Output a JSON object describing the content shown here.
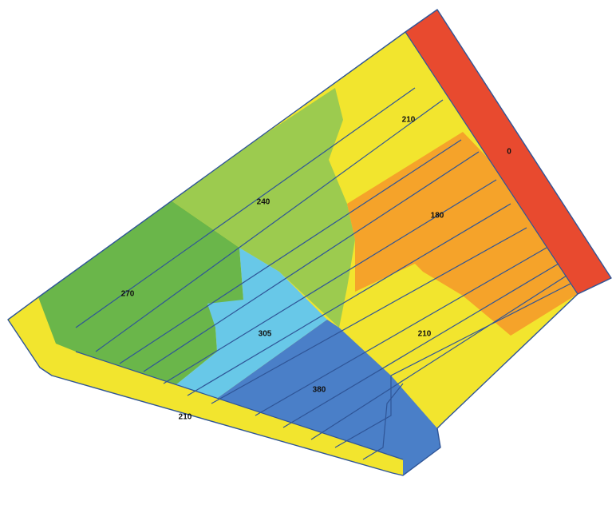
{
  "map": {
    "zones": [
      {
        "id": "zone-0",
        "label": "0",
        "color": "#e84a2f"
      },
      {
        "id": "zone-180",
        "label": "180",
        "color": "#f5a32a"
      },
      {
        "id": "zone-210-ne",
        "label": "210",
        "color": "#f2e52e"
      },
      {
        "id": "zone-210-se",
        "label": "210",
        "color": "#f2e52e"
      },
      {
        "id": "zone-210-strip",
        "label": "210",
        "color": "#f2e52e"
      },
      {
        "id": "zone-240",
        "label": "240",
        "color": "#9ccb4f"
      },
      {
        "id": "zone-270",
        "label": "270",
        "color": "#6ab64a"
      },
      {
        "id": "zone-305",
        "label": "305",
        "color": "#68c8e8"
      },
      {
        "id": "zone-380",
        "label": "380",
        "color": "#4a7fc8"
      }
    ],
    "outline_color": "#2f5597"
  }
}
